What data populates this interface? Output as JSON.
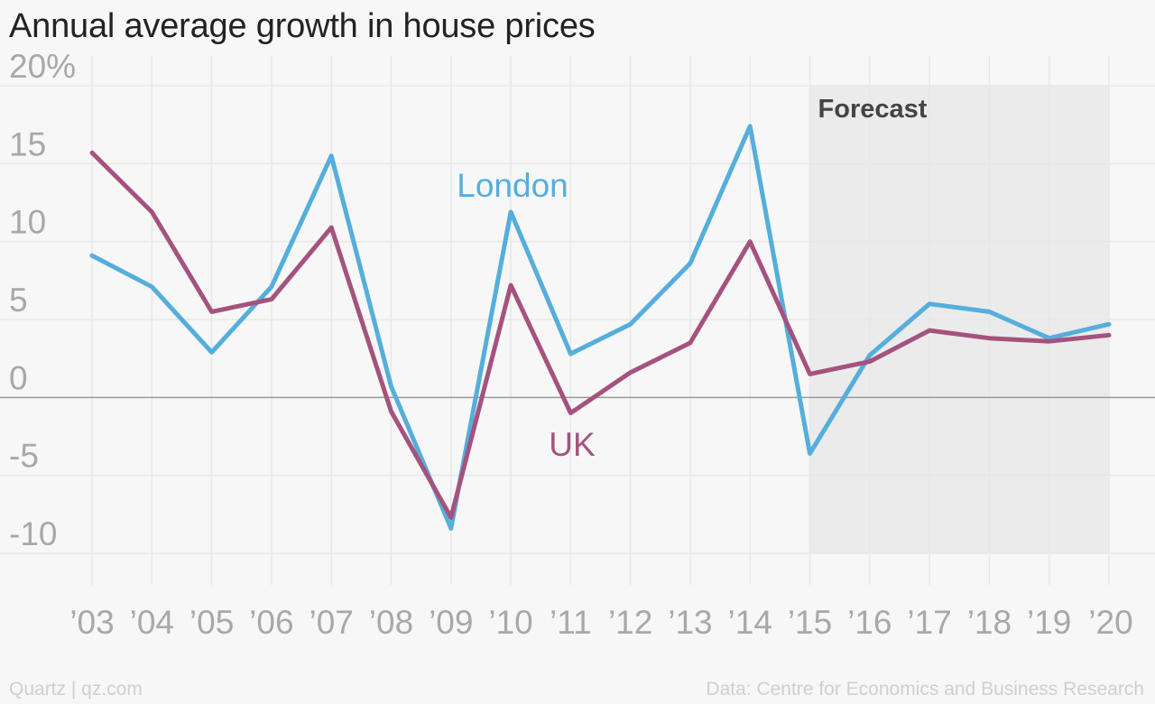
{
  "title": "Annual average growth in house prices",
  "footer": {
    "credit": "Quartz | qz.com",
    "source": "Data: Centre for Economics and Business Research"
  },
  "colors": {
    "london": "#55aedb",
    "uk": "#a5527e",
    "forecast_band": "#ebebeb",
    "grid": "#e8e8e8",
    "zero_line": "#999999",
    "tick_text": "#a8a8a8"
  },
  "chart_data": {
    "type": "line",
    "title": "Annual average growth in house prices",
    "xlabel": "",
    "ylabel": "",
    "categories": [
      "’03",
      "’04",
      "’05",
      "’06",
      "’07",
      "’08",
      "’09",
      "’10",
      "’11",
      "’12",
      "’13",
      "’14",
      "’15",
      "’16",
      "’17",
      "’18",
      "’19",
      "’20"
    ],
    "ylim": [
      -10,
      20
    ],
    "y_ticks": [
      -10,
      -5,
      0,
      5,
      10,
      15,
      20
    ],
    "y_tick_labels": [
      "-10",
      "-5",
      "0",
      "5",
      "10",
      "15",
      "20%"
    ],
    "grid": true,
    "forecast": {
      "label": "Forecast",
      "start": "’15",
      "end": "’20"
    },
    "series": [
      {
        "name": "London",
        "color": "#55aedb",
        "values": [
          9.1,
          7.1,
          2.9,
          7.1,
          15.5,
          0.7,
          -8.4,
          11.9,
          2.8,
          4.7,
          8.6,
          17.4,
          -3.6,
          2.7,
          6.0,
          5.5,
          3.8,
          4.7
        ]
      },
      {
        "name": "UK",
        "color": "#a5527e",
        "values": [
          15.7,
          11.9,
          5.5,
          6.3,
          10.9,
          -0.9,
          -7.7,
          7.2,
          -1.0,
          1.6,
          3.5,
          10.0,
          1.5,
          2.3,
          4.3,
          3.8,
          3.6,
          4.0
        ]
      }
    ]
  }
}
